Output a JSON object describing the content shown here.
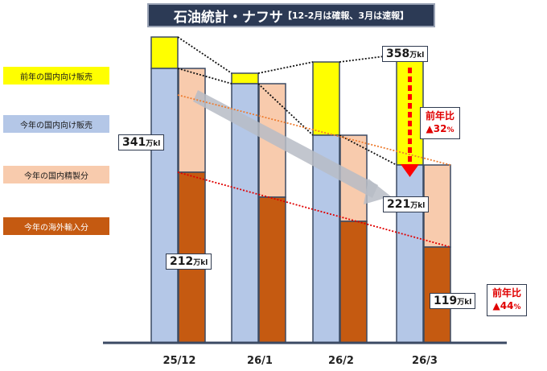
{
  "title": {
    "main": "石油統計・ナフサ",
    "sub": "【12-2月は確報、3月は速報】"
  },
  "colors": {
    "prev_domestic": "#ffff00",
    "this_domestic": "#b4c7e7",
    "this_refinery": "#f8cbad",
    "this_import": "#c55a11",
    "outline": "#3b4a63"
  },
  "legend": [
    {
      "label": "前年の国内向け販売",
      "color": "#ffff00",
      "text_color": "#1a1a1a"
    },
    {
      "label": "今年の国内向け販売",
      "color": "#b4c7e7",
      "text_color": "#1a1a1a"
    },
    {
      "label": "今年の国内精製分",
      "color": "#f8cbad",
      "text_color": "#1a1a1a"
    },
    {
      "label": "今年の海外輸入分",
      "color": "#c55a11",
      "text_color": "#ffffff"
    }
  ],
  "chart_data": {
    "type": "bar",
    "title": "石油統計・ナフサ【12-2月は確報、3月は速報】",
    "unit": "万kl",
    "categories": [
      "25/12",
      "26/1",
      "26/2",
      "26/3"
    ],
    "series": [
      {
        "name": "前年の国内向け販売",
        "values": [
          380,
          335,
          349,
          358
        ]
      },
      {
        "name": "今年の国内向け販売",
        "values": [
          341,
          322,
          258,
          221
        ]
      },
      {
        "name": "今年の国内精製分",
        "values": [
          129,
          141,
          107,
          102
        ]
      },
      {
        "name": "今年の海外輸入分",
        "values": [
          212,
          181,
          151,
          119
        ]
      }
    ],
    "ylim": [
      0,
      420
    ]
  },
  "labels": {
    "l341": {
      "value": "341",
      "unit": "万kl"
    },
    "l212": {
      "value": "212",
      "unit": "万kl"
    },
    "l358": {
      "value": "358",
      "unit": "万kl"
    },
    "l221": {
      "value": "221",
      "unit": "万kl"
    },
    "l119": {
      "value": "119",
      "unit": "万kl"
    }
  },
  "callouts": [
    {
      "line1": "前年比",
      "line2": "▲32",
      "suffix": "%"
    },
    {
      "line1": "前年比",
      "line2": "▲44",
      "suffix": "%"
    }
  ]
}
